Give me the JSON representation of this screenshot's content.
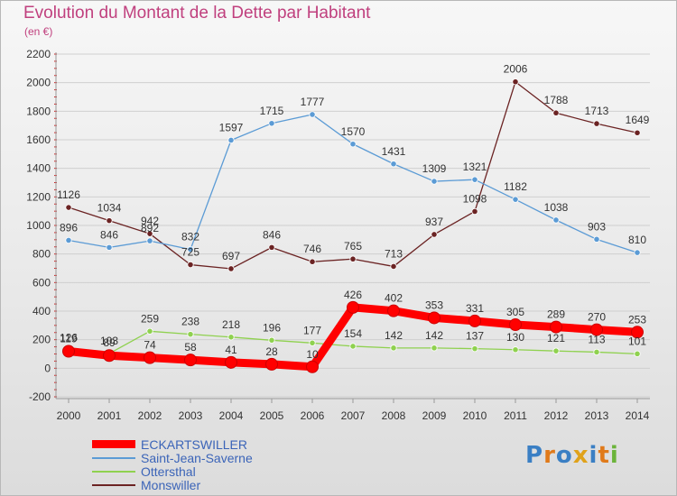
{
  "header": {
    "title": "Evolution du Montant de la Dette par Habitant",
    "unit": "(en €)"
  },
  "logo": {
    "text": "Proxiti"
  },
  "chart_data": {
    "type": "line",
    "title": "Evolution du Montant de la Dette par Habitant",
    "subtitle": "(en €)",
    "xlabel": "",
    "ylabel": "",
    "x": [
      "2000",
      "2001",
      "2002",
      "2003",
      "2004",
      "2005",
      "2006",
      "2007",
      "2008",
      "2009",
      "2010",
      "2011",
      "2012",
      "2013",
      "2014"
    ],
    "ylim": [
      -200,
      2200
    ],
    "yticks": [
      -200,
      0,
      200,
      400,
      600,
      800,
      1000,
      1200,
      1400,
      1600,
      1800,
      2000,
      2200
    ],
    "grid": "horizontal",
    "legend_position": "bottom-left",
    "series": [
      {
        "name": "ECKARTSWILLER",
        "color": "#ff0000",
        "values": [
          119,
          89,
          74,
          58,
          41,
          28,
          10,
          426,
          402,
          353,
          331,
          305,
          289,
          270,
          253
        ]
      },
      {
        "name": "Saint-Jean-Saverne",
        "color": "#5b9bd5",
        "values": [
          896,
          846,
          892,
          832,
          1597,
          1715,
          1777,
          1570,
          1431,
          1309,
          1321,
          1182,
          1038,
          903,
          810
        ]
      },
      {
        "name": "Ottersthal",
        "color": "#8fd14f",
        "values": [
          126,
          103,
          259,
          238,
          218,
          196,
          177,
          154,
          142,
          142,
          137,
          130,
          121,
          113,
          101
        ]
      },
      {
        "name": "Monswiller",
        "color": "#6b2323",
        "values": [
          1126,
          1034,
          942,
          725,
          697,
          846,
          746,
          765,
          713,
          937,
          1098,
          2006,
          1788,
          1713,
          1649
        ]
      }
    ]
  }
}
